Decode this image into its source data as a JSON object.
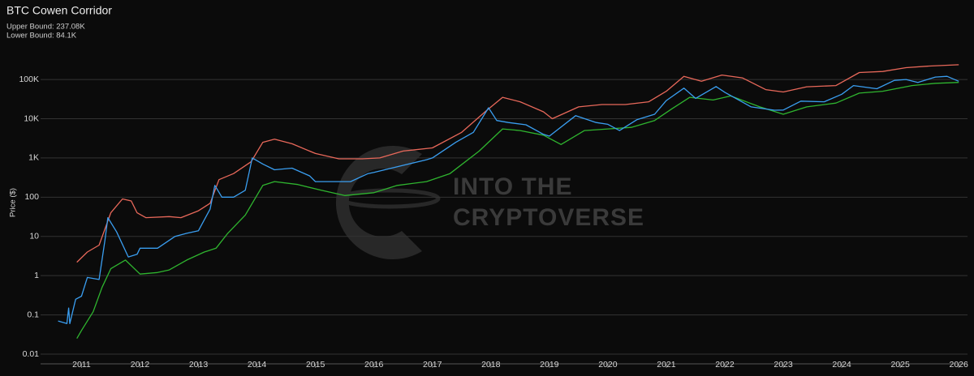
{
  "chart_data": {
    "type": "line",
    "title": "BTC Cowen Corridor",
    "subtitle": [
      "Upper Bound: 237.08K",
      "Lower Bound: 84.1K"
    ],
    "y_label": "Price ($)",
    "watermark": [
      "INTO THE",
      "CRYPTOVERSE"
    ],
    "log_y": true,
    "grid": true,
    "xlim": [
      2010.3,
      2026.15
    ],
    "xticks": [
      2011,
      2012,
      2013,
      2014,
      2015,
      2016,
      2017,
      2018,
      2019,
      2020,
      2021,
      2022,
      2023,
      2024,
      2025,
      2026
    ],
    "ylim": [
      0.01,
      380000
    ],
    "yticks": [
      0.01,
      0.1,
      1,
      10,
      100,
      {
        "value": 1000,
        "label": "1K"
      },
      {
        "value": 10000,
        "label": "10K"
      },
      {
        "value": 100000,
        "label": "100K"
      }
    ],
    "series": [
      {
        "color": "#e8685a",
        "x": [
          2010.92,
          2011.1,
          2011.3,
          2011.5,
          2011.7,
          2011.85,
          2011.95,
          2012.1,
          2012.5,
          2012.7,
          2013.0,
          2013.2,
          2013.35,
          2013.6,
          2013.9,
          2014.1,
          2014.3,
          2014.6,
          2015.0,
          2015.4,
          2015.8,
          2016.1,
          2016.5,
          2017.0,
          2017.5,
          2017.9,
          2018.2,
          2018.5,
          2018.9,
          2019.05,
          2019.5,
          2019.9,
          2020.3,
          2020.7,
          2021.0,
          2021.3,
          2021.6,
          2021.95,
          2022.3,
          2022.7,
          2023.0,
          2023.4,
          2023.9,
          2024.3,
          2024.7,
          2025.1,
          2025.5,
          2026.0
        ],
        "values": [
          2.2,
          4,
          6,
          40,
          90,
          80,
          40,
          30,
          32,
          30,
          45,
          70,
          280,
          400,
          800,
          2500,
          3000,
          2300,
          1300,
          950,
          950,
          1000,
          1500,
          1800,
          4500,
          15000,
          35000,
          27000,
          15000,
          10000,
          20000,
          23000,
          23000,
          27000,
          50000,
          120000,
          90000,
          130000,
          110000,
          55000,
          48000,
          65000,
          70000,
          150000,
          160000,
          200000,
          220000,
          237080
        ]
      },
      {
        "color": "#2fb52f",
        "x": [
          2010.92,
          2011.0,
          2011.2,
          2011.35,
          2011.5,
          2011.75,
          2012.0,
          2012.3,
          2012.5,
          2012.8,
          2013.1,
          2013.3,
          2013.5,
          2013.8,
          2014.1,
          2014.3,
          2014.7,
          2015.1,
          2015.5,
          2016.0,
          2016.4,
          2016.9,
          2017.3,
          2017.8,
          2018.2,
          2018.5,
          2018.9,
          2019.2,
          2019.6,
          2020.0,
          2020.4,
          2020.8,
          2021.1,
          2021.4,
          2021.8,
          2022.1,
          2022.6,
          2023.0,
          2023.4,
          2023.9,
          2024.3,
          2024.7,
          2025.2,
          2025.6,
          2026.0
        ],
        "values": [
          0.025,
          0.04,
          0.12,
          0.5,
          1.5,
          2.5,
          1.1,
          1.2,
          1.4,
          2.5,
          4,
          5,
          12,
          35,
          200,
          250,
          210,
          150,
          110,
          130,
          200,
          250,
          400,
          1500,
          5500,
          5000,
          3800,
          2200,
          5000,
          5500,
          6000,
          9000,
          18000,
          35000,
          30000,
          38000,
          20000,
          13000,
          20000,
          25000,
          45000,
          50000,
          70000,
          80000,
          84100
        ]
      },
      {
        "color": "#3a9ef0",
        "x": [
          2010.6,
          2010.75,
          2010.78,
          2010.8,
          2010.9,
          2011.0,
          2011.1,
          2011.3,
          2011.4,
          2011.45,
          2011.6,
          2011.8,
          2011.95,
          2012.0,
          2012.3,
          2012.6,
          2012.8,
          2013.0,
          2013.2,
          2013.28,
          2013.4,
          2013.6,
          2013.8,
          2013.92,
          2014.1,
          2014.3,
          2014.6,
          2014.9,
          2015.0,
          2015.2,
          2015.6,
          2015.9,
          2016.0,
          2016.5,
          2016.9,
          2017.0,
          2017.4,
          2017.7,
          2017.96,
          2018.1,
          2018.3,
          2018.6,
          2018.9,
          2019.0,
          2019.45,
          2019.8,
          2020.0,
          2020.2,
          2020.5,
          2020.8,
          2021.0,
          2021.3,
          2021.5,
          2021.85,
          2022.0,
          2022.45,
          2022.85,
          2023.0,
          2023.3,
          2023.7,
          2024.0,
          2024.2,
          2024.6,
          2024.9,
          2025.1,
          2025.3,
          2025.6,
          2025.8,
          2026.0
        ],
        "values": [
          0.07,
          0.06,
          0.15,
          0.06,
          0.25,
          0.3,
          0.9,
          0.8,
          8,
          30,
          13,
          3,
          3.5,
          5,
          5,
          10,
          12,
          14,
          50,
          200,
          100,
          100,
          150,
          1000,
          700,
          500,
          550,
          350,
          250,
          250,
          250,
          400,
          430,
          650,
          900,
          1000,
          2500,
          4500,
          19000,
          9000,
          8000,
          7000,
          4000,
          3600,
          12000,
          8000,
          7200,
          5000,
          9500,
          13000,
          29000,
          60000,
          33000,
          66000,
          47000,
          20000,
          16500,
          16600,
          28000,
          27000,
          42000,
          70000,
          58000,
          95000,
          100000,
          84000,
          115000,
          120000,
          90000
        ]
      }
    ]
  }
}
